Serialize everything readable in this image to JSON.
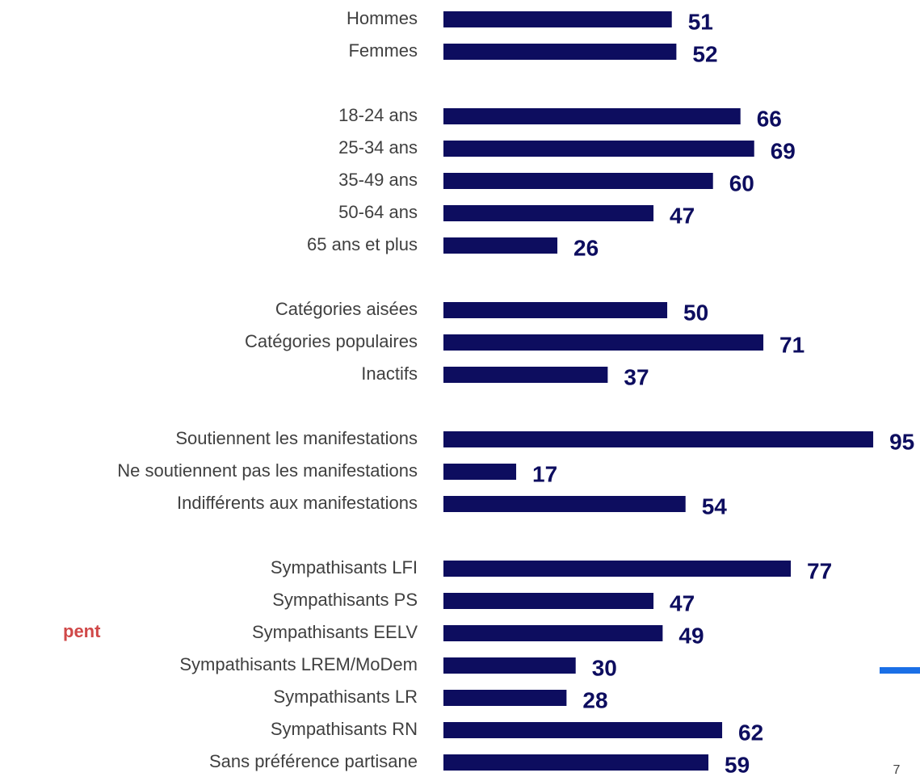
{
  "chart_data": {
    "type": "bar",
    "orientation": "horizontal",
    "color": "#0d0d5f",
    "categories": [
      "Hommes",
      "Femmes",
      null,
      "18-24 ans",
      "25-34 ans",
      "35-49 ans",
      "50-64 ans",
      "65 ans et plus",
      null,
      "Catégories aisées",
      "Catégories populaires",
      "Inactifs",
      null,
      "Soutiennent les manifestations",
      "Ne soutiennent pas les manifestations",
      "Indifférents aux manifestations",
      null,
      "Sympathisants LFI",
      "Sympathisants PS",
      "Sympathisants EELV",
      "Sympathisants LREM/MoDem",
      "Sympathisants LR",
      "Sympathisants RN",
      "Sans préférence partisane"
    ],
    "values": [
      51,
      52,
      null,
      66,
      69,
      60,
      47,
      26,
      null,
      50,
      71,
      37,
      null,
      95,
      17,
      54,
      null,
      77,
      47,
      49,
      30,
      28,
      62,
      59
    ],
    "annotation": "pent",
    "page_number": "7"
  }
}
